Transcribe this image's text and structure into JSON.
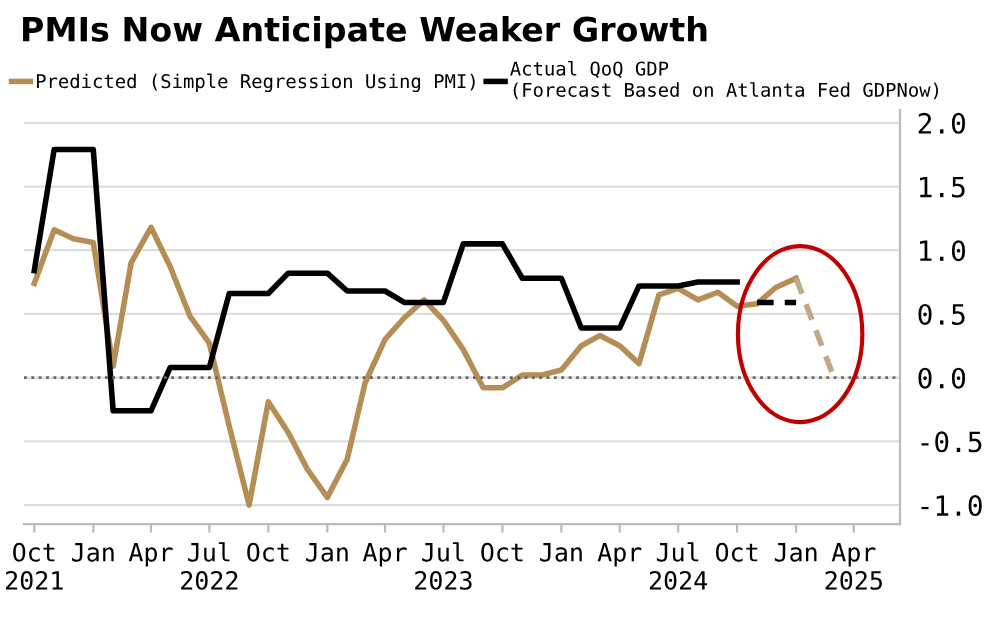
{
  "chart_data": {
    "type": "line",
    "title": "PMIs Now Anticipate Weaker Growth",
    "series": [
      {
        "name": "Predicted (Simple Regression Using PMI)",
        "color": "#b58e55",
        "line_style": "solid",
        "x": [
          "2021-10",
          "2021-11",
          "2021-12",
          "2022-01",
          "2022-02",
          "2022-03",
          "2022-04",
          "2022-05",
          "2022-06",
          "2022-07",
          "2022-08",
          "2022-09",
          "2022-10",
          "2022-11",
          "2022-12",
          "2023-01",
          "2023-02",
          "2023-03",
          "2023-04",
          "2023-05",
          "2023-06",
          "2023-07",
          "2023-08",
          "2023-09",
          "2023-10",
          "2023-11",
          "2023-12",
          "2024-01",
          "2024-02",
          "2024-03",
          "2024-04",
          "2024-05",
          "2024-06",
          "2024-07",
          "2024-08",
          "2024-09",
          "2024-10",
          "2024-11",
          "2024-12",
          "2025-01"
        ],
        "values": [
          0.74,
          1.16,
          1.09,
          1.06,
          0.09,
          0.9,
          1.18,
          0.87,
          0.48,
          0.27,
          -0.38,
          -1.0,
          -0.19,
          -0.43,
          -0.72,
          -0.94,
          -0.64,
          -0.04,
          0.3,
          0.47,
          0.61,
          0.45,
          0.22,
          -0.08,
          -0.08,
          0.02,
          0.02,
          0.06,
          0.25,
          0.33,
          0.25,
          0.11,
          0.65,
          0.7,
          0.61,
          0.67,
          0.56,
          0.58,
          0.71,
          0.78
        ]
      },
      {
        "color": "#c2a884",
        "line_style": "dashed",
        "x": [
          "2025-01",
          "2025-03"
        ],
        "values": [
          0.78,
          0.0
        ]
      },
      {
        "name": "Actual QoQ GDP\n(Forecast Based on Atlanta Fed GDPNow)",
        "color": "#000000",
        "line_style": "solid",
        "x": [
          "2021-10",
          "2021-11",
          "2022-01",
          "2022-02",
          "2022-04",
          "2022-05",
          "2022-07",
          "2022-08",
          "2022-10",
          "2022-11",
          "2023-01",
          "2023-02",
          "2023-04",
          "2023-05",
          "2023-07",
          "2023-08",
          "2023-10",
          "2023-11",
          "2024-01",
          "2024-02",
          "2024-04",
          "2024-05",
          "2024-07",
          "2024-08",
          "2024-10"
        ],
        "values": [
          0.84,
          1.79,
          1.79,
          -0.26,
          -0.26,
          0.08,
          0.08,
          0.66,
          0.66,
          0.82,
          0.82,
          0.68,
          0.68,
          0.59,
          0.59,
          1.05,
          1.05,
          0.78,
          0.78,
          0.39,
          0.39,
          0.72,
          0.72,
          0.75,
          0.75
        ]
      },
      {
        "color": "#000000",
        "line_style": "dashed",
        "x": [
          "2024-11",
          "2025-01"
        ],
        "values": [
          0.59,
          0.59
        ]
      }
    ],
    "xlim": [
      "2021-09-15",
      "2025-06-12"
    ],
    "xticks": [
      {
        "value": "2021-10",
        "label": "Oct\n2021"
      },
      {
        "value": "2022-01",
        "label": "Jan"
      },
      {
        "value": "2022-04",
        "label": "Apr"
      },
      {
        "value": "2022-07",
        "label": "Jul\n2022"
      },
      {
        "value": "2022-10",
        "label": "Oct"
      },
      {
        "value": "2023-01",
        "label": "Jan"
      },
      {
        "value": "2023-04",
        "label": "Apr"
      },
      {
        "value": "2023-07",
        "label": "Jul\n2023"
      },
      {
        "value": "2023-10",
        "label": "Oct"
      },
      {
        "value": "2024-01",
        "label": "Jan"
      },
      {
        "value": "2024-04",
        "label": "Apr"
      },
      {
        "value": "2024-07",
        "label": "Jul\n2024"
      },
      {
        "value": "2024-10",
        "label": "Oct"
      },
      {
        "value": "2025-01",
        "label": "Jan"
      },
      {
        "value": "2025-04",
        "label": "Apr\n2025"
      }
    ],
    "ylim": [
      -1.15,
      2.1
    ],
    "yticks": [
      {
        "value": -1.0,
        "label": "-1.0"
      },
      {
        "value": -0.5,
        "label": "-0.5"
      },
      {
        "value": 0.0,
        "label": "0.0"
      },
      {
        "value": 0.5,
        "label": "0.5"
      },
      {
        "value": 1.0,
        "label": "1.0"
      },
      {
        "value": 1.5,
        "label": "1.5"
      },
      {
        "value": 2.0,
        "label": "2.0"
      }
    ],
    "ref_lines": [
      {
        "axis": "y",
        "value": 0,
        "color": "#666666",
        "line_style": "dotted"
      }
    ],
    "grid": "y",
    "legend": "top",
    "marker": "none"
  }
}
